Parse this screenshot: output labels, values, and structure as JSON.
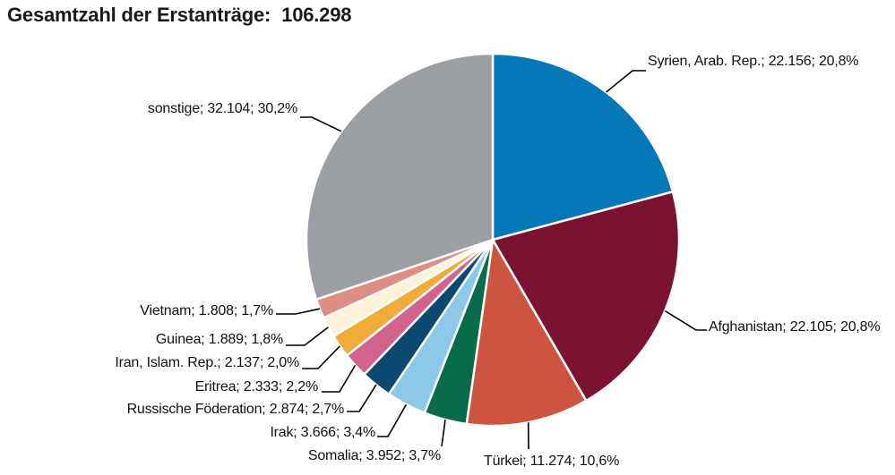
{
  "header": {
    "title_label": "Gesamtzahl der Erstanträge:",
    "title_value": "106.298"
  },
  "chart_data": {
    "type": "pie",
    "title": "Gesamtzahl der Erstanträge: 106.298",
    "total": 106298,
    "start_angle_deg": -90,
    "direction": "clockwise",
    "legend_position": "none",
    "labels_style": "outside-with-leader-lines",
    "label_format": "name; value; percent",
    "separator_color": "#ffffff",
    "leader_line_color": "#000000",
    "slices": [
      {
        "name": "Syrien, Arab. Rep.",
        "value": 22156,
        "value_label": "22.156",
        "pct_label": "20,8%",
        "color": "#0778b7"
      },
      {
        "name": "Afghanistan",
        "value": 22105,
        "value_label": "22.105",
        "pct_label": "20,8%",
        "color": "#7b1232"
      },
      {
        "name": "Türkei",
        "value": 11274,
        "value_label": "11.274",
        "pct_label": "10,6%",
        "color": "#cc5440"
      },
      {
        "name": "Somalia",
        "value": 3952,
        "value_label": "3.952",
        "pct_label": "3,7%",
        "color": "#076b4c"
      },
      {
        "name": "Irak",
        "value": 3666,
        "value_label": "3.666",
        "pct_label": "3,4%",
        "color": "#8dc8e8"
      },
      {
        "name": "Russische Föderation",
        "value": 2874,
        "value_label": "2.874",
        "pct_label": "2,7%",
        "color": "#0d4870"
      },
      {
        "name": "Eritrea",
        "value": 2333,
        "value_label": "2.333",
        "pct_label": "2,2%",
        "color": "#d2638e"
      },
      {
        "name": "Iran, Islam. Rep.",
        "value": 2137,
        "value_label": "2.137",
        "pct_label": "2,0%",
        "color": "#f0ab38"
      },
      {
        "name": "Guinea",
        "value": 1889,
        "value_label": "1.889",
        "pct_label": "1,8%",
        "color": "#fbf2d7"
      },
      {
        "name": "Vietnam",
        "value": 1808,
        "value_label": "1.808",
        "pct_label": "1,7%",
        "color": "#de8e84"
      },
      {
        "name": "sonstige",
        "value": 32104,
        "value_label": "32.104",
        "pct_label": "30,2%",
        "color": "#9b9fa3"
      }
    ]
  }
}
